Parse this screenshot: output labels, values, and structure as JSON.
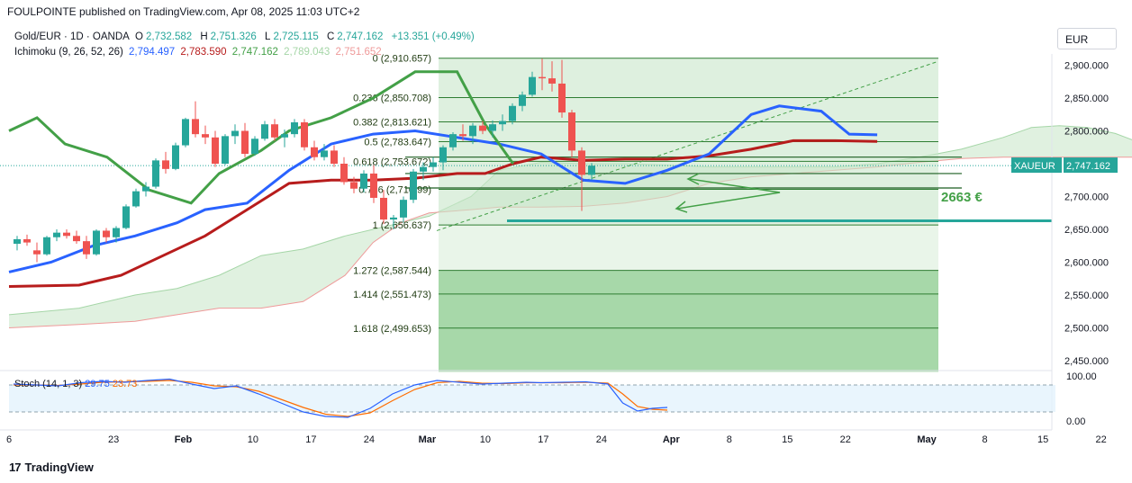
{
  "header": {
    "text": "FOULPOINTE published on TradingView.com, Apr 08, 2025 11:03 UTC+2"
  },
  "legend": {
    "symbol": "Gold/EUR · 1D · OANDA",
    "o_label": "O",
    "o": "2,732.582",
    "h_label": "H",
    "h": "2,751.326",
    "l_label": "L",
    "l": "2,725.115",
    "c_label": "C",
    "c": "2,747.162",
    "chg": "+13.351 (+0.49%)",
    "ichimoku_name": "Ichimoku (9, 26, 52, 26)",
    "ich_values": [
      "2,794.497",
      "2,783.590",
      "2,747.162",
      "2,789.043",
      "2,751.652"
    ],
    "stoch_name": "Stoch (14, 1, 3)",
    "stoch_k": "29.75",
    "stoch_d": "23.73"
  },
  "currency": "EUR",
  "brand": "TradingView",
  "colors": {
    "up": "#26a69a",
    "down": "#ef5350",
    "tenkan": "#2962ff",
    "kijun": "#b71c1c",
    "chikou": "#43a047",
    "fib": "#2e7d32",
    "stoch_k": "#2962ff",
    "stoch_d": "#ff6d00"
  },
  "chart_data": {
    "type": "candlestick",
    "price_axis": {
      "ticks": [
        2900,
        2850,
        2800,
        2750,
        2700,
        2650,
        2600,
        2550,
        2500,
        2450
      ],
      "tick_labels": [
        "2,900.000",
        "2,850.000",
        "2,800.000",
        "2,750.000",
        "2,700.000",
        "2,650.000",
        "2,600.000",
        "2,550.000",
        "2,500.000",
        "2,450.000"
      ]
    },
    "time_axis": {
      "labels": [
        {
          "label": "6",
          "bar": 0
        },
        {
          "label": "23",
          "bar": 9
        },
        {
          "label": "Feb",
          "bar": 15
        },
        {
          "label": "10",
          "bar": 21
        },
        {
          "label": "17",
          "bar": 26
        },
        {
          "label": "24",
          "bar": 31
        },
        {
          "label": "Mar",
          "bar": 36
        },
        {
          "label": "10",
          "bar": 41
        },
        {
          "label": "17",
          "bar": 46
        },
        {
          "label": "24",
          "bar": 51
        },
        {
          "label": "Apr",
          "bar": 57
        },
        {
          "label": "8",
          "bar": 62
        },
        {
          "label": "15",
          "bar": 67
        },
        {
          "label": "22",
          "bar": 72
        },
        {
          "label": "May",
          "bar": 79
        },
        {
          "label": "8",
          "bar": 84
        },
        {
          "label": "15",
          "bar": 89
        },
        {
          "label": "22",
          "bar": 94
        }
      ]
    },
    "candles": [
      [
        2628,
        2640,
        2618,
        2635
      ],
      [
        2635,
        2642,
        2625,
        2630
      ],
      [
        2618,
        2630,
        2600,
        2612
      ],
      [
        2612,
        2640,
        2610,
        2638
      ],
      [
        2638,
        2650,
        2632,
        2645
      ],
      [
        2645,
        2650,
        2636,
        2640
      ],
      [
        2640,
        2648,
        2628,
        2632
      ],
      [
        2632,
        2640,
        2605,
        2612
      ],
      [
        2612,
        2650,
        2610,
        2648
      ],
      [
        2648,
        2652,
        2630,
        2638
      ],
      [
        2638,
        2655,
        2630,
        2652
      ],
      [
        2652,
        2688,
        2650,
        2685
      ],
      [
        2685,
        2712,
        2683,
        2708
      ],
      [
        2708,
        2722,
        2700,
        2715
      ],
      [
        2715,
        2758,
        2712,
        2755
      ],
      [
        2755,
        2768,
        2735,
        2742
      ],
      [
        2742,
        2782,
        2740,
        2778
      ],
      [
        2778,
        2820,
        2775,
        2818
      ],
      [
        2818,
        2845,
        2790,
        2795
      ],
      [
        2795,
        2808,
        2780,
        2790
      ],
      [
        2790,
        2800,
        2745,
        2750
      ],
      [
        2750,
        2795,
        2748,
        2792
      ],
      [
        2792,
        2810,
        2780,
        2800
      ],
      [
        2800,
        2812,
        2760,
        2765
      ],
      [
        2765,
        2792,
        2762,
        2788
      ],
      [
        2788,
        2815,
        2785,
        2810
      ],
      [
        2810,
        2818,
        2785,
        2790
      ],
      [
        2790,
        2802,
        2775,
        2795
      ],
      [
        2795,
        2818,
        2790,
        2813
      ],
      [
        2813,
        2818,
        2770,
        2775
      ],
      [
        2775,
        2785,
        2755,
        2760
      ],
      [
        2760,
        2780,
        2755,
        2770
      ],
      [
        2770,
        2778,
        2745,
        2750
      ],
      [
        2750,
        2760,
        2718,
        2722
      ],
      [
        2722,
        2730,
        2705,
        2712
      ],
      [
        2712,
        2740,
        2706,
        2735
      ],
      [
        2735,
        2748,
        2690,
        2698
      ],
      [
        2698,
        2710,
        2658,
        2665
      ],
      [
        2665,
        2672,
        2650,
        2668
      ],
      [
        2668,
        2700,
        2660,
        2695
      ],
      [
        2695,
        2742,
        2690,
        2738
      ],
      [
        2738,
        2752,
        2725,
        2745
      ],
      [
        2745,
        2760,
        2738,
        2752
      ],
      [
        2752,
        2778,
        2740,
        2775
      ],
      [
        2775,
        2798,
        2770,
        2795
      ],
      [
        2795,
        2810,
        2785,
        2792
      ],
      [
        2792,
        2812,
        2780,
        2808
      ],
      [
        2808,
        2815,
        2795,
        2800
      ],
      [
        2800,
        2816,
        2790,
        2810
      ],
      [
        2810,
        2825,
        2800,
        2815
      ],
      [
        2815,
        2842,
        2810,
        2838
      ],
      [
        2838,
        2860,
        2830,
        2855
      ],
      [
        2855,
        2890,
        2852,
        2882
      ],
      [
        2882,
        2910,
        2862,
        2880
      ],
      [
        2880,
        2906,
        2860,
        2872
      ],
      [
        2872,
        2908,
        2820,
        2828
      ],
      [
        2828,
        2832,
        2760,
        2770
      ],
      [
        2770,
        2775,
        2678,
        2733
      ],
      [
        2733,
        2751,
        2725,
        2747
      ]
    ],
    "ichimoku": {
      "tenkan": [
        [
          0,
          2585
        ],
        [
          3,
          2600
        ],
        [
          6,
          2625
        ],
        [
          9,
          2640
        ],
        [
          12,
          2660
        ],
        [
          14,
          2680
        ],
        [
          17,
          2690
        ],
        [
          20,
          2740
        ],
        [
          23,
          2780
        ],
        [
          26,
          2795
        ],
        [
          29,
          2800
        ],
        [
          32,
          2790
        ],
        [
          35,
          2780
        ],
        [
          38,
          2765
        ],
        [
          41,
          2725
        ],
        [
          44,
          2720
        ],
        [
          47,
          2740
        ],
        [
          50,
          2765
        ],
        [
          53,
          2825
        ],
        [
          55,
          2838
        ],
        [
          58,
          2830
        ],
        [
          60,
          2795
        ],
        [
          62,
          2794
        ]
      ],
      "kijun": [
        [
          0,
          2563
        ],
        [
          5,
          2565
        ],
        [
          8,
          2580
        ],
        [
          11,
          2610
        ],
        [
          14,
          2640
        ],
        [
          17,
          2680
        ],
        [
          20,
          2720
        ],
        [
          23,
          2725
        ],
        [
          26,
          2725
        ],
        [
          29,
          2728
        ],
        [
          32,
          2735
        ],
        [
          34,
          2735
        ],
        [
          36,
          2750
        ],
        [
          38,
          2760
        ],
        [
          41,
          2755
        ],
        [
          44,
          2757
        ],
        [
          47,
          2757
        ],
        [
          50,
          2762
        ],
        [
          53,
          2772
        ],
        [
          56,
          2785
        ],
        [
          59,
          2785
        ],
        [
          62,
          2784
        ]
      ],
      "chikou": [
        [
          0,
          2800
        ],
        [
          2,
          2820
        ],
        [
          4,
          2780
        ],
        [
          7,
          2760
        ],
        [
          10,
          2710
        ],
        [
          13,
          2690
        ],
        [
          15,
          2735
        ],
        [
          18,
          2770
        ],
        [
          20,
          2800
        ],
        [
          23,
          2820
        ],
        [
          26,
          2850
        ],
        [
          29,
          2890
        ],
        [
          32,
          2890
        ],
        [
          34,
          2810
        ],
        [
          36,
          2750
        ]
      ],
      "cloud_upper": [
        [
          0,
          2520
        ],
        [
          5,
          2530
        ],
        [
          9,
          2550
        ],
        [
          12,
          2560
        ],
        [
          15,
          2580
        ],
        [
          18,
          2610
        ],
        [
          21,
          2620
        ],
        [
          24,
          2640
        ],
        [
          26,
          2650
        ],
        [
          28,
          2660
        ],
        [
          30,
          2670
        ],
        [
          33,
          2700
        ],
        [
          35,
          2740
        ],
        [
          38,
          2752
        ],
        [
          41,
          2750
        ],
        [
          44,
          2750
        ],
        [
          47,
          2748
        ],
        [
          50,
          2745
        ],
        [
          53,
          2745
        ],
        [
          56,
          2745
        ],
        [
          59,
          2745
        ],
        [
          62,
          2750
        ],
        [
          65,
          2760
        ],
        [
          68,
          2772
        ],
        [
          71,
          2790
        ],
        [
          73,
          2805
        ],
        [
          75,
          2808
        ],
        [
          77,
          2805
        ],
        [
          79,
          2796
        ],
        [
          81,
          2780
        ]
      ],
      "cloud_lower": [
        [
          0,
          2500
        ],
        [
          5,
          2505
        ],
        [
          9,
          2510
        ],
        [
          12,
          2520
        ],
        [
          15,
          2530
        ],
        [
          18,
          2530
        ],
        [
          21,
          2540
        ],
        [
          24,
          2580
        ],
        [
          26,
          2630
        ],
        [
          28,
          2660
        ],
        [
          30,
          2675
        ],
        [
          33,
          2680
        ],
        [
          35,
          2684
        ],
        [
          38,
          2684
        ],
        [
          41,
          2685
        ],
        [
          44,
          2690
        ],
        [
          47,
          2700
        ],
        [
          50,
          2720
        ],
        [
          53,
          2730
        ],
        [
          56,
          2735
        ],
        [
          59,
          2740
        ],
        [
          62,
          2745
        ],
        [
          65,
          2752
        ],
        [
          68,
          2758
        ],
        [
          71,
          2760
        ],
        [
          73,
          2760
        ],
        [
          75,
          2760
        ],
        [
          77,
          2760
        ],
        [
          79,
          2760
        ],
        [
          81,
          2760
        ]
      ]
    },
    "fibonacci": [
      {
        "ratio": "0",
        "label": "0 (2,910.657)",
        "price": 2910.657
      },
      {
        "ratio": "0.236",
        "label": "0.236 (2,850.708)",
        "price": 2850.708
      },
      {
        "ratio": "0.382",
        "label": "0.382 (2,813.621)",
        "price": 2813.621
      },
      {
        "ratio": "0.5",
        "label": "0.5 (2,783.647)",
        "price": 2783.647
      },
      {
        "ratio": "0.618",
        "label": "0.618 (2,753.672)",
        "price": 2753.672
      },
      {
        "ratio": "0.786",
        "label": "0.786 (2,710.99)",
        "price": 2710.99
      },
      {
        "ratio": "1",
        "label": "1 (2,656.637)",
        "price": 2656.637
      },
      {
        "ratio": "1.272",
        "label": "1.272 (2,587.544)",
        "price": 2587.544
      },
      {
        "ratio": "1.414",
        "label": "1.414 (2,551.473)",
        "price": 2551.473
      },
      {
        "ratio": "1.618",
        "label": "1.618 (2,499.653)",
        "price": 2499.653
      }
    ],
    "support_line": {
      "price": 2663
    },
    "h_lines": [
      {
        "price": 2760
      },
      {
        "price": 2735
      },
      {
        "price": 2713
      }
    ],
    "annotation": {
      "text": "2663 €"
    },
    "last_price": {
      "symbol": "XAUEUR",
      "value": "2,747.162",
      "price": 2747.162
    },
    "stochastic": {
      "axis_labels": [
        "100.00",
        "0.00"
      ],
      "k": [
        [
          0,
          82
        ],
        [
          3,
          80
        ],
        [
          6,
          78
        ],
        [
          9,
          85
        ],
        [
          12,
          88
        ],
        [
          15,
          86
        ],
        [
          18,
          90
        ],
        [
          21,
          93
        ],
        [
          24,
          82
        ],
        [
          27,
          72
        ],
        [
          30,
          78
        ],
        [
          33,
          60
        ],
        [
          36,
          40
        ],
        [
          39,
          20
        ],
        [
          42,
          10
        ],
        [
          45,
          8
        ],
        [
          48,
          28
        ],
        [
          51,
          60
        ],
        [
          54,
          80
        ],
        [
          57,
          90
        ],
        [
          60,
          86
        ],
        [
          63,
          82
        ],
        [
          66,
          84
        ],
        [
          69,
          86
        ],
        [
          71,
          85
        ],
        [
          74,
          86
        ],
        [
          77,
          87
        ],
        [
          80,
          82
        ],
        [
          82,
          40
        ],
        [
          84,
          22
        ],
        [
          86,
          28
        ],
        [
          88,
          30
        ]
      ],
      "d": [
        [
          0,
          80
        ],
        [
          3,
          80
        ],
        [
          6,
          79
        ],
        [
          9,
          82
        ],
        [
          12,
          86
        ],
        [
          15,
          87
        ],
        [
          18,
          88
        ],
        [
          21,
          90
        ],
        [
          24,
          86
        ],
        [
          27,
          78
        ],
        [
          30,
          76
        ],
        [
          33,
          66
        ],
        [
          36,
          48
        ],
        [
          39,
          30
        ],
        [
          42,
          15
        ],
        [
          45,
          10
        ],
        [
          48,
          18
        ],
        [
          51,
          45
        ],
        [
          54,
          70
        ],
        [
          57,
          85
        ],
        [
          60,
          88
        ],
        [
          63,
          84
        ],
        [
          66,
          83
        ],
        [
          69,
          85
        ],
        [
          71,
          85
        ],
        [
          74,
          85
        ],
        [
          77,
          86
        ],
        [
          80,
          84
        ],
        [
          82,
          60
        ],
        [
          84,
          32
        ],
        [
          86,
          26
        ],
        [
          88,
          24
        ]
      ]
    }
  }
}
